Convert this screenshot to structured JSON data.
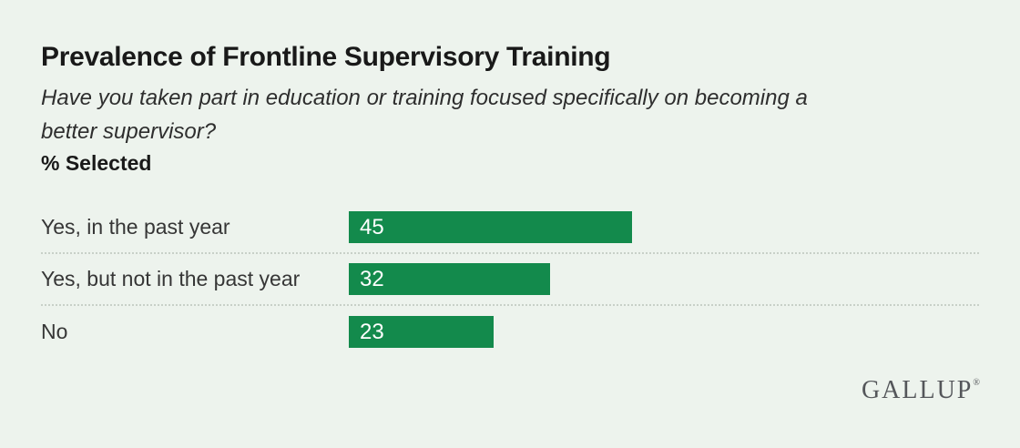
{
  "header": {
    "title": "Prevalence of Frontline Supervisory Training",
    "subtitle": "Have you taken part in education or training focused specifically on becoming a better supervisor?",
    "metric_label": "% Selected"
  },
  "chart_data": {
    "type": "bar",
    "orientation": "horizontal",
    "title": "Prevalence of Frontline Supervisory Training",
    "subtitle": "Have you taken part in education or training focused specifically on becoming a better supervisor?",
    "xlabel": "% Selected",
    "ylabel": "",
    "categories": [
      "Yes, in the past year",
      "Yes, but not in the past year",
      "No"
    ],
    "values": [
      45,
      32,
      23
    ],
    "xlim": [
      0,
      100
    ],
    "grid": false,
    "legend": false,
    "value_label_position": "inside-left"
  },
  "branding": {
    "logo_text": "GALLUP",
    "registered_mark": "®"
  },
  "colors": {
    "background": "#edf3ed",
    "bar": "#138a4c",
    "title_text": "#191919",
    "subtitle_text": "#2e2e2e",
    "category_text": "#363636",
    "value_text": "#ffffff",
    "separator": "#c8d0c8",
    "logo_text": "#54565a"
  }
}
